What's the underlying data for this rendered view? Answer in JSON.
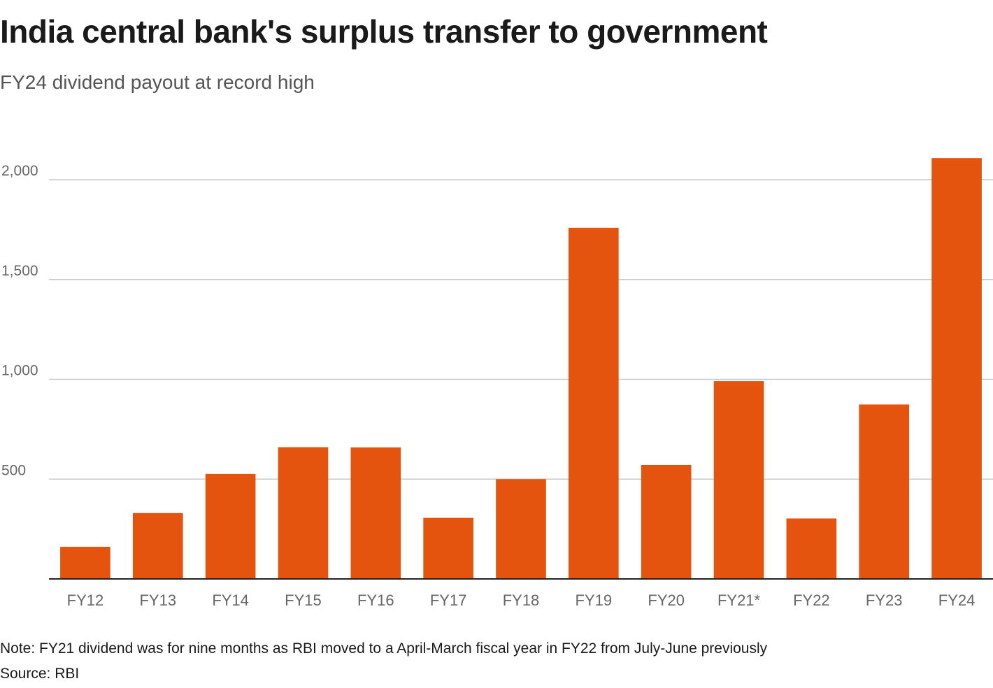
{
  "title": "India central bank's surplus transfer to government",
  "subtitle": "FY24 dividend payout at record high",
  "note": "Note: FY21 dividend was for nine months as RBI moved to a April-March fiscal year in FY22 from July-June previously",
  "source": "Source: RBI",
  "colors": {
    "bar": "#e4540f",
    "grid": "#c8c8c8",
    "axis": "#222222",
    "tick_text": "#666666"
  },
  "chart_data": {
    "type": "bar",
    "title": "India central bank's surplus transfer to government",
    "subtitle": "FY24 dividend payout at record high",
    "xlabel": "",
    "ylabel": "",
    "categories": [
      "FY12",
      "FY13",
      "FY14",
      "FY15",
      "FY16",
      "FY17",
      "FY18",
      "FY19",
      "FY20",
      "FY21*",
      "FY22",
      "FY23",
      "FY24"
    ],
    "values": [
      161,
      330,
      526,
      660,
      659,
      306,
      500,
      1759,
      571,
      991,
      303,
      874,
      2108
    ],
    "ylim": [
      0,
      2200
    ],
    "yticks": [
      500,
      1000,
      1500,
      2000
    ],
    "ytick_labels": [
      "500",
      "1,000",
      "1,500",
      "2,000"
    ],
    "grid": true,
    "legend": "none"
  }
}
